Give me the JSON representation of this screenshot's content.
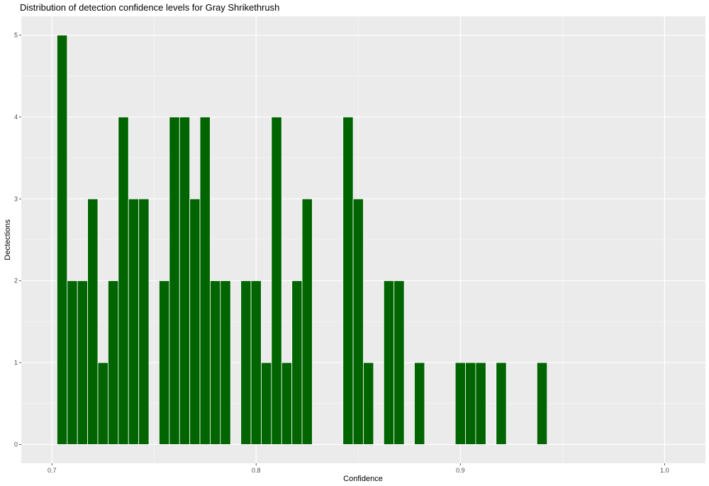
{
  "chart_data": {
    "type": "bar",
    "title": "Distribution of detection confidence levels for Gray Shrikethrush",
    "xlabel": "Confidence",
    "ylabel": "Dectections",
    "xlim": [
      0.685,
      1.02
    ],
    "ylim": [
      -0.23,
      5.23
    ],
    "bin_width": 0.005,
    "x_ticks": [
      0.7,
      0.8,
      0.9,
      1.0
    ],
    "x_tick_labels": [
      "0.7",
      "0.8",
      "0.9",
      "1.0"
    ],
    "y_ticks": [
      0,
      1,
      2,
      3,
      4,
      5
    ],
    "y_tick_labels": [
      "0",
      "1",
      "2",
      "3",
      "4",
      "5"
    ],
    "grid": true,
    "bar_color": "#006400",
    "bar_edge_color": "#ffffff",
    "panel_color": "#ebebeb",
    "bins": [
      {
        "x": 0.705,
        "y": 5
      },
      {
        "x": 0.71,
        "y": 2
      },
      {
        "x": 0.715,
        "y": 2
      },
      {
        "x": 0.72,
        "y": 3
      },
      {
        "x": 0.725,
        "y": 1
      },
      {
        "x": 0.73,
        "y": 2
      },
      {
        "x": 0.735,
        "y": 4
      },
      {
        "x": 0.74,
        "y": 3
      },
      {
        "x": 0.745,
        "y": 3
      },
      {
        "x": 0.755,
        "y": 2
      },
      {
        "x": 0.76,
        "y": 4
      },
      {
        "x": 0.765,
        "y": 4
      },
      {
        "x": 0.77,
        "y": 3
      },
      {
        "x": 0.775,
        "y": 4
      },
      {
        "x": 0.78,
        "y": 2
      },
      {
        "x": 0.785,
        "y": 2
      },
      {
        "x": 0.795,
        "y": 2
      },
      {
        "x": 0.8,
        "y": 2
      },
      {
        "x": 0.805,
        "y": 1
      },
      {
        "x": 0.81,
        "y": 4
      },
      {
        "x": 0.815,
        "y": 1
      },
      {
        "x": 0.82,
        "y": 2
      },
      {
        "x": 0.825,
        "y": 3
      },
      {
        "x": 0.845,
        "y": 4
      },
      {
        "x": 0.85,
        "y": 3
      },
      {
        "x": 0.855,
        "y": 1
      },
      {
        "x": 0.865,
        "y": 2
      },
      {
        "x": 0.87,
        "y": 2
      },
      {
        "x": 0.88,
        "y": 1
      },
      {
        "x": 0.9,
        "y": 1
      },
      {
        "x": 0.905,
        "y": 1
      },
      {
        "x": 0.91,
        "y": 1
      },
      {
        "x": 0.92,
        "y": 1
      },
      {
        "x": 0.94,
        "y": 1
      }
    ]
  }
}
